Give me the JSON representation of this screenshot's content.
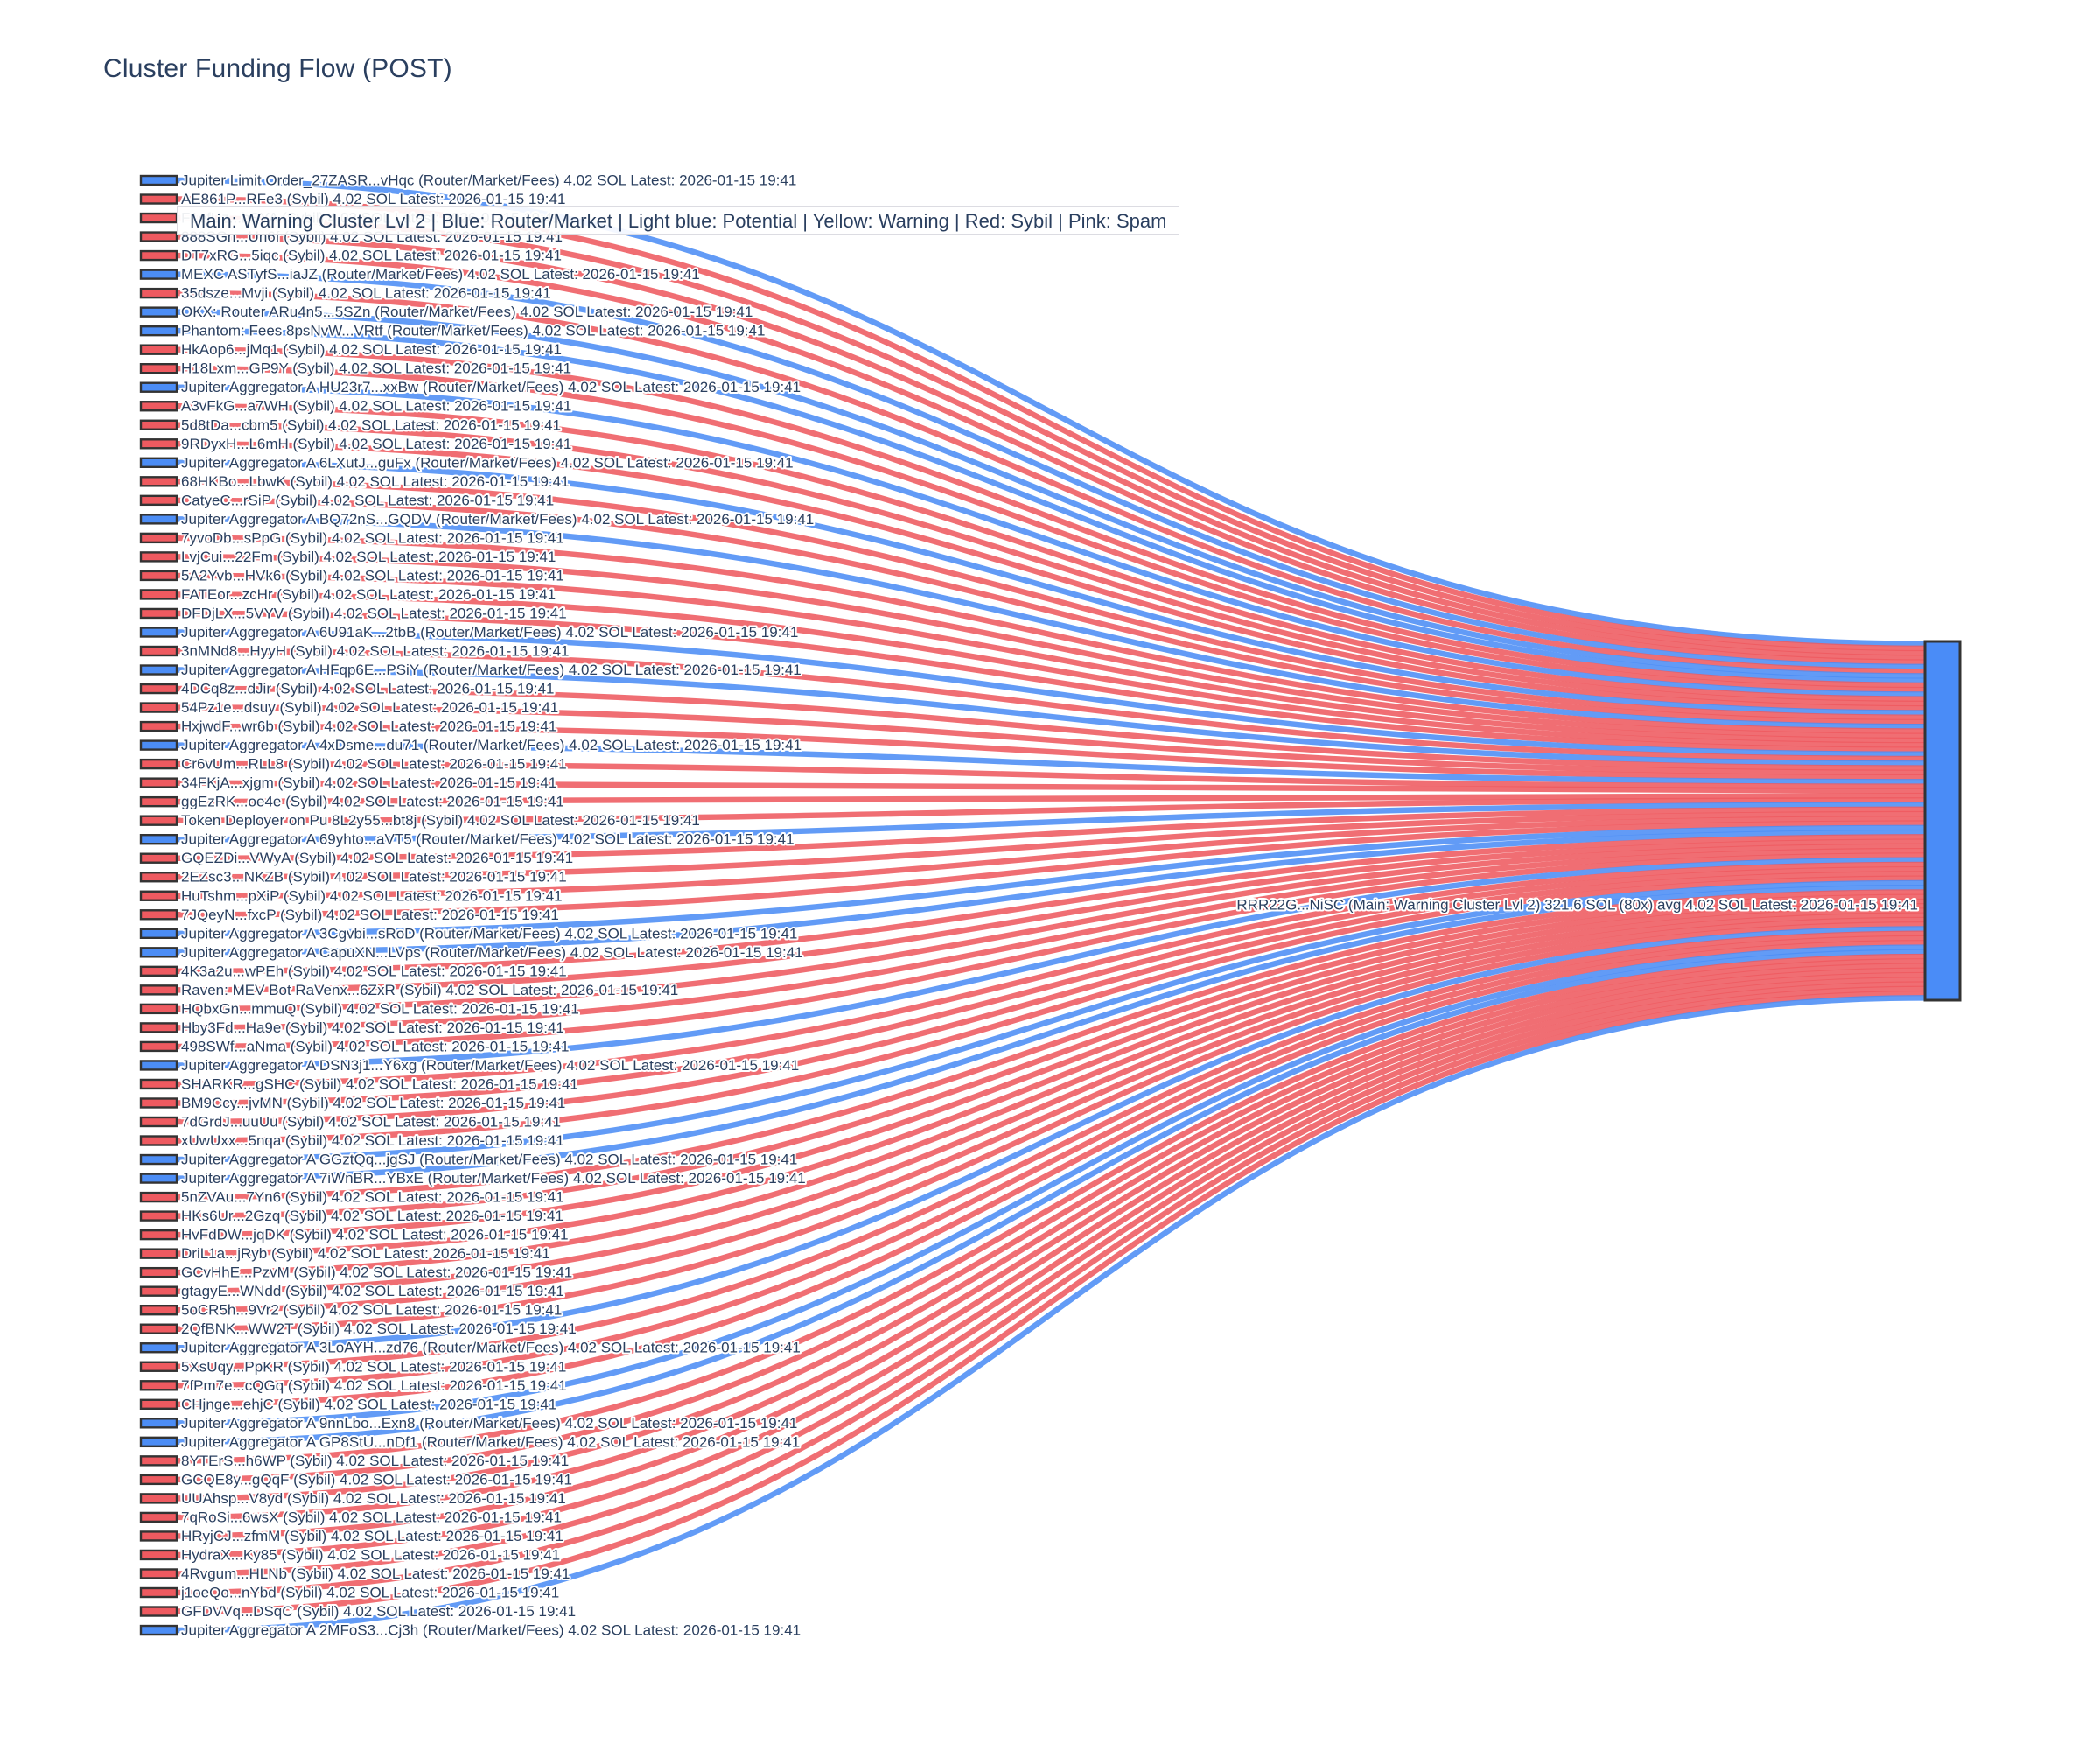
{
  "title": "Cluster Funding Flow (POST)",
  "legend": "Main: Warning Cluster Lvl 2  |  Blue: Router/Market | Light blue: Potential | Yellow: Warning | Red: Sybil | Pink: Spam",
  "colors": {
    "router_blue": "#4c8df5",
    "sybil_red": "#ee5a60",
    "node_border": "#333333",
    "target_node_fill": "#4a8cf7",
    "text": "#2a3f5f",
    "halo": "#ffffff"
  },
  "chart_data": {
    "type": "sankey",
    "title": "Cluster Funding Flow (POST)",
    "link_value_sol": 4.02,
    "latest": "2026-01-15 19:41",
    "target": {
      "label": "RRR22G...NiSC (Main: Warning Cluster Lvl 2) 321.6 SOL (80x) avg 4.02 SOL Latest: 2026-01-15 19:41",
      "total_sol": 321.6,
      "tx_count": 80,
      "avg_sol": 4.02
    },
    "sources": [
      "Jupiter Limit Order_27ZASR...vHqc (Router/Market/Fees) 4.02 SOL Latest: 2026-01-15 19:41",
      "AE861P...RFe3 (Sybil) 4.02 SOL Latest: 2026-01-15 19:41",
      "F1efUz...bSYA (Sybil) 4.02 SOL Latest: 2026-01-15 19:41",
      "888SGn...Un6f (Sybil) 4.02 SOL Latest: 2026-01-15 19:41",
      "DT7xRG...5iqc (Sybil) 4.02 SOL Latest: 2026-01-15 19:41",
      "MEXC ASTyfS...iaJZ (Router/Market/Fees) 4.02 SOL Latest: 2026-01-15 19:41",
      "35dsze...Mvji (Sybil) 4.02 SOL Latest: 2026-01-15 19:41",
      "OKX: Router ARu4n5...5SZn (Router/Market/Fees) 4.02 SOL Latest: 2026-01-15 19:41",
      "Phantom: Fees 8psNvW...VRtf (Router/Market/Fees) 4.02 SOL Latest: 2026-01-15 19:41",
      "HkAop6...jMq1 (Sybil) 4.02 SOL Latest: 2026-01-15 19:41",
      "H18Lxm...GP9Y (Sybil) 4.02 SOL Latest: 2026-01-15 19:41",
      "Jupiter Aggregator A HU23r7...xxBw (Router/Market/Fees) 4.02 SOL Latest: 2026-01-15 19:41",
      "A3vFkG...a7WH (Sybil) 4.02 SOL Latest: 2026-01-15 19:41",
      "5d8tDa...cbm5 (Sybil) 4.02 SOL Latest: 2026-01-15 19:41",
      "9RDyxH...L6mH (Sybil) 4.02 SOL Latest: 2026-01-15 19:41",
      "Jupiter Aggregator A 6LXutJ...guFx (Router/Market/Fees) 4.02 SOL Latest: 2026-01-15 19:41",
      "68HKBo...LbwK (Sybil) 4.02 SOL Latest: 2026-01-15 19:41",
      "CatyeC...rSiP (Sybil) 4.02 SOL Latest: 2026-01-15 19:41",
      "Jupiter Aggregator A BQ72nS...GQDV (Router/Market/Fees) 4.02 SOL Latest: 2026-01-15 19:41",
      "7yvoDb...sPpG (Sybil) 4.02 SOL Latest: 2026-01-15 19:41",
      "LvjCui...22Fm (Sybil) 4.02 SOL Latest: 2026-01-15 19:41",
      "5A2Yvb...HVk6 (Sybil) 4.02 SOL Latest: 2026-01-15 19:41",
      "FATEor...zcHr (Sybil) 4.02 SOL Latest: 2026-01-15 19:41",
      "DFDjLX...5VYV (Sybil) 4.02 SOL Latest: 2026-01-15 19:41",
      "Jupiter Aggregator A 6U91aK...2tbB (Router/Market/Fees) 4.02 SOL Latest: 2026-01-15 19:41",
      "3nMNd8...HyyH (Sybil) 4.02 SOL Latest: 2026-01-15 19:41",
      "Jupiter Aggregator A HFqp6E...PSiY (Router/Market/Fees) 4.02 SOL Latest: 2026-01-15 19:41",
      "4DCq8z...dJir (Sybil) 4.02 SOL Latest: 2026-01-15 19:41",
      "54Pz1e...dsuy (Sybil) 4.02 SOL Latest: 2026-01-15 19:41",
      "HxjwdF...wr6b (Sybil) 4.02 SOL Latest: 2026-01-15 19:41",
      "Jupiter Aggregator A 4xDsme...du71 (Router/Market/Fees) 4.02 SOL Latest: 2026-01-15 19:41",
      "Cr6vUm...RLL8 (Sybil) 4.02 SOL Latest: 2026-01-15 19:41",
      "34FKjA...xjgm (Sybil) 4.02 SOL Latest: 2026-01-15 19:41",
      "ggEzRK...oe4e (Sybil) 4.02 SOL Latest: 2026-01-15 19:41",
      "Token Deployer on Pu 8L2y55...bt8j (Sybil) 4.02 SOL Latest: 2026-01-15 19:41",
      "Jupiter Aggregator A 69yhto...aVT5 (Router/Market/Fees) 4.02 SOL Latest: 2026-01-15 19:41",
      "GQEZDi...VWyA (Sybil) 4.02 SOL Latest: 2026-01-15 19:41",
      "2EZsc3...NKZB (Sybil) 4.02 SOL Latest: 2026-01-15 19:41",
      "HuTshm...pXiP (Sybil) 4.02 SOL Latest: 2026-01-15 19:41",
      "7JQeyN...fxcP (Sybil) 4.02 SOL Latest: 2026-01-15 19:41",
      "Jupiter Aggregator A 3Cgvbi...sRoD (Router/Market/Fees) 4.02 SOL Latest: 2026-01-15 19:41",
      "Jupiter Aggregator A CapuXN...LVps (Router/Market/Fees) 4.02 SOL Latest: 2026-01-15 19:41",
      "4K3a2u...wPEh (Sybil) 4.02 SOL Latest: 2026-01-15 19:41",
      "Raven: MEV Bot RaVenx...6ZxR (Sybil) 4.02 SOL Latest: 2026-01-15 19:41",
      "HQbxGn...mmuQ (Sybil) 4.02 SOL Latest: 2026-01-15 19:41",
      "Hby3Fd...Ha9e (Sybil) 4.02 SOL Latest: 2026-01-15 19:41",
      "498SWf...aNma (Sybil) 4.02 SOL Latest: 2026-01-15 19:41",
      "Jupiter Aggregator A DSN3j1...Y6xg (Router/Market/Fees) 4.02 SOL Latest: 2026-01-15 19:41",
      "SHARKR...gSHC (Sybil) 4.02 SOL Latest: 2026-01-15 19:41",
      "BM9Ccy...jvMN (Sybil) 4.02 SOL Latest: 2026-01-15 19:41",
      "7dGrdJ...uuUu (Sybil) 4.02 SOL Latest: 2026-01-15 19:41",
      "xUwUxx...5nqa (Sybil) 4.02 SOL Latest: 2026-01-15 19:41",
      "Jupiter Aggregator A GGztQq...jgSJ (Router/Market/Fees) 4.02 SOL Latest: 2026-01-15 19:41",
      "Jupiter Aggregator A 7iWnBR...YBxE (Router/Market/Fees) 4.02 SOL Latest: 2026-01-15 19:41",
      "5nZVAu...7Yn6 (Sybil) 4.02 SOL Latest: 2026-01-15 19:41",
      "HKs6Ur...2Gzq (Sybil) 4.02 SOL Latest: 2026-01-15 19:41",
      "HvFdDW...jqDK (Sybil) 4.02 SOL Latest: 2026-01-15 19:41",
      "DriL1a...jRyb (Sybil) 4.02 SOL Latest: 2026-01-15 19:41",
      "GCvHhE...PzvM (Sybil) 4.02 SOL Latest: 2026-01-15 19:41",
      "gtagyE...WNdd (Sybil) 4.02 SOL Latest: 2026-01-15 19:41",
      "5oCR5h...9Vr2 (Sybil) 4.02 SOL Latest: 2026-01-15 19:41",
      "2QfBNK...WW2T (Sybil) 4.02 SOL Latest: 2026-01-15 19:41",
      "Jupiter Aggregator A 3LoAYH...zd76 (Router/Market/Fees) 4.02 SOL Latest: 2026-01-15 19:41",
      "5XsUqy...PpKR (Sybil) 4.02 SOL Latest: 2026-01-15 19:41",
      "7fPm7e...cQGq (Sybil) 4.02 SOL Latest: 2026-01-15 19:41",
      "CHjnge...ehjC (Sybil) 4.02 SOL Latest: 2026-01-15 19:41",
      "Jupiter Aggregator A 9nnLbo...Exn8 (Router/Market/Fees) 4.02 SOL Latest: 2026-01-15 19:41",
      "Jupiter Aggregator A GP8StU...nDf1 (Router/Market/Fees) 4.02 SOL Latest: 2026-01-15 19:41",
      "8YTErS...h6WP (Sybil) 4.02 SOL Latest: 2026-01-15 19:41",
      "GCQE8y...gQqF (Sybil) 4.02 SOL Latest: 2026-01-15 19:41",
      "UUAhsp...V8yd (Sybil) 4.02 SOL Latest: 2026-01-15 19:41",
      "7qRoSi...6wsX (Sybil) 4.02 SOL Latest: 2026-01-15 19:41",
      "HRyjCJ...zfmM (Sybil) 4.02 SOL Latest: 2026-01-15 19:41",
      "HydraX...Ky85 (Sybil) 4.02 SOL Latest: 2026-01-15 19:41",
      "4Rvgum...HLNb (Sybil) 4.02 SOL Latest: 2026-01-15 19:41",
      "j1oeQo...nYbd (Sybil) 4.02 SOL Latest: 2026-01-15 19:41",
      "GFDVVq...DSqC (Sybil) 4.02 SOL Latest: 2026-01-15 19:41",
      "Jupiter Aggregator A 2MFoS3...Cj3h (Router/Market/Fees) 4.02 SOL Latest: 2026-01-15 19:41"
    ]
  }
}
